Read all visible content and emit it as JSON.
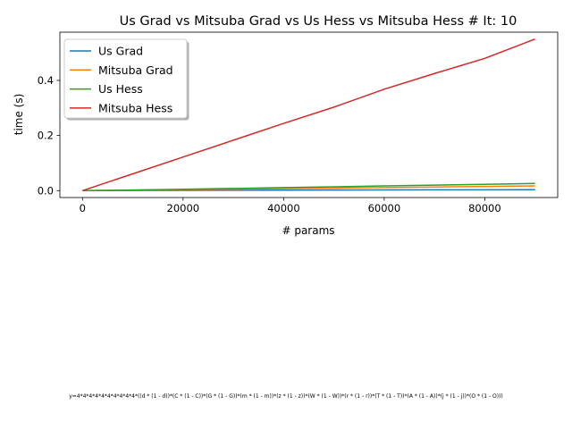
{
  "chart_data": {
    "type": "line",
    "title": "Us Grad vs Mitsuba Grad vs Us Hess vs Mitsuba Hess # It: 10",
    "xlabel": "# params",
    "ylabel": "time (s)",
    "xlim": [
      -4500,
      94500
    ],
    "ylim": [
      -0.025,
      0.575
    ],
    "xticks": [
      0,
      20000,
      40000,
      60000,
      80000
    ],
    "yticks": [
      0.0,
      0.2,
      0.4
    ],
    "xtick_labels": [
      "0",
      "20000",
      "40000",
      "60000",
      "80000"
    ],
    "ytick_labels": [
      "0.0",
      "0.2",
      "0.4"
    ],
    "grid": false,
    "legend_position": "upper-left",
    "x": [
      0,
      10000,
      20000,
      30000,
      40000,
      50000,
      60000,
      70000,
      80000,
      90000
    ],
    "series": [
      {
        "name": "Us Grad",
        "color": "#1f77b4",
        "values": [
          0.0,
          0.0005,
          0.001,
          0.0013,
          0.0017,
          0.002,
          0.0024,
          0.0028,
          0.0031,
          0.0035
        ]
      },
      {
        "name": "Mitsuba Grad",
        "color": "#ff7f0e",
        "values": [
          0.0,
          0.0018,
          0.0036,
          0.0055,
          0.0073,
          0.0092,
          0.011,
          0.013,
          0.015,
          0.017
        ]
      },
      {
        "name": "Us Hess",
        "color": "#2ca02c",
        "values": [
          0.0,
          0.002,
          0.005,
          0.008,
          0.011,
          0.014,
          0.017,
          0.02,
          0.023,
          0.026
        ]
      },
      {
        "name": "Mitsuba Hess",
        "color": "#d62728",
        "values": [
          0.0,
          0.061,
          0.122,
          0.183,
          0.244,
          0.303,
          0.368,
          0.425,
          0.48,
          0.55
        ]
      }
    ]
  },
  "footer": {
    "equation": "y=4*4*4*4*4*4*4*4*4*4*((d * (1 - d))*(C * (1 - C))*(G * (1 - G))*(m * (1 - m))*(z * (1 - z))*(W * (1 - W))*(r * (1 - r))*(T * (1 - T))*(A * (1 - A))*(j * (1 - j))*(O * (1 - O)))"
  }
}
